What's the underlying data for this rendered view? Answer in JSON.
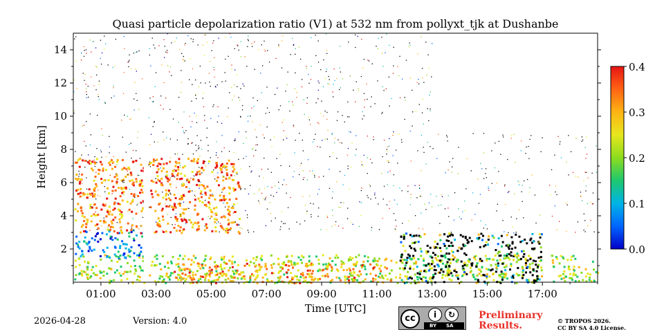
{
  "chart_data": {
    "type": "heatmap",
    "title": "Quasi particle depolarization ratio (V1) at 532 nm from pollyxt_tjk at Dushanbe",
    "xlabel": "Time [UTC]",
    "ylabel": "Height [km]",
    "xlim_hours": [
      0,
      19
    ],
    "ylim_km": [
      0,
      15
    ],
    "x_ticks": [
      {
        "hour": 1,
        "label": "01:00"
      },
      {
        "hour": 3,
        "label": "03:00"
      },
      {
        "hour": 5,
        "label": "05:00"
      },
      {
        "hour": 7,
        "label": "07:00"
      },
      {
        "hour": 9,
        "label": "09:00"
      },
      {
        "hour": 11,
        "label": "11:00"
      },
      {
        "hour": 13,
        "label": "13:00"
      },
      {
        "hour": 15,
        "label": "15:00"
      },
      {
        "hour": 17,
        "label": "17:00"
      }
    ],
    "y_ticks": [
      {
        "km": 2,
        "label": "2"
      },
      {
        "km": 4,
        "label": "4"
      },
      {
        "km": 6,
        "label": "6"
      },
      {
        "km": 8,
        "label": "8"
      },
      {
        "km": 10,
        "label": "10"
      },
      {
        "km": 12,
        "label": "12"
      },
      {
        "km": 14,
        "label": "14"
      }
    ],
    "colorbar": {
      "min": 0.0,
      "max": 0.4,
      "ticks": [
        {
          "value": 0.0,
          "label": "0.0"
        },
        {
          "value": 0.1,
          "label": "0.1"
        },
        {
          "value": 0.2,
          "label": "0.2"
        },
        {
          "value": 0.3,
          "label": "0.3"
        },
        {
          "value": 0.4,
          "label": "0.4"
        }
      ],
      "colors": [
        "#0000c8",
        "#0066ff",
        "#00b4e6",
        "#1ec86e",
        "#8cdc1e",
        "#e6e61e",
        "#ffb414",
        "#ff6414",
        "#e61414"
      ]
    },
    "data_gaps_hours": [
      [
        2.55,
        2.72
      ],
      [
        17.05,
        17.2
      ]
    ],
    "regions": [
      {
        "name": "boundary-layer",
        "t_start": 0,
        "t_end": 19,
        "h_low_km": 0,
        "h_high_km": 1.7,
        "value": 0.22
      },
      {
        "name": "dust-near-surface",
        "t_start": 3.5,
        "t_end": 11.5,
        "h_low_km": 0,
        "h_high_km": 1.2,
        "value": 0.32
      },
      {
        "name": "lower-aerosol-layer",
        "t_start": 0,
        "t_end": 2.6,
        "h_low_km": 1.5,
        "h_high_km": 3.2,
        "value": 0.08
      },
      {
        "name": "elevated-dust-layer",
        "t_start": 0,
        "t_end": 6.0,
        "h_low_km": 3.0,
        "h_high_km": 7.5,
        "value": 0.33
      },
      {
        "name": "cloud-layer",
        "t_start": 11.8,
        "t_end": 17.0,
        "h_low_km": 0,
        "h_high_km": 3.0,
        "value": 0.0
      }
    ]
  },
  "footer": {
    "date": "2026-04-28",
    "version": "Version: 4.0",
    "badge_by": "BY",
    "badge_sa": "SA",
    "badge_cc": "cc",
    "preliminary_line1": "Preliminary",
    "preliminary_line2": "Results.",
    "license_line1": "© TROPOS 2026.",
    "license_line2": "CC BY SA 4.0 License."
  }
}
